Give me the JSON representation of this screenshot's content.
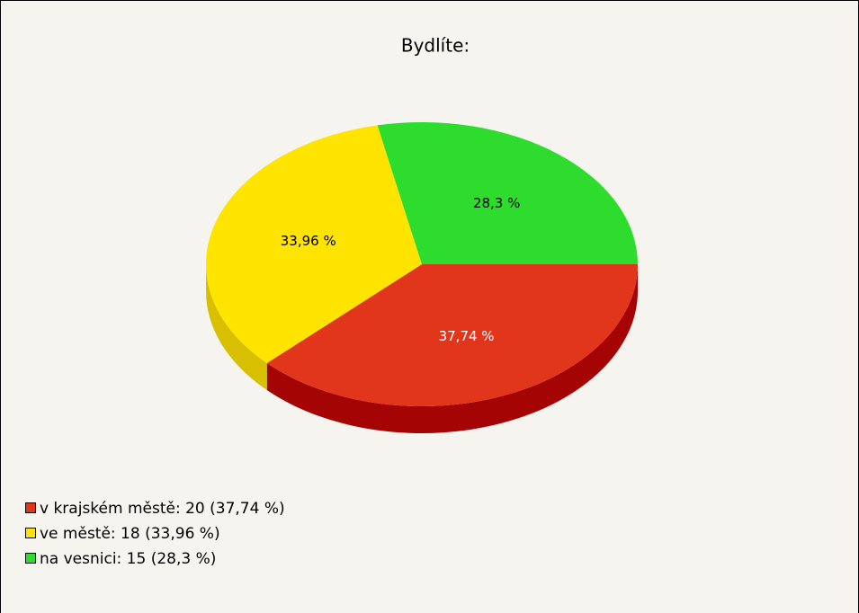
{
  "chart_data": {
    "type": "pie",
    "title": "Bydlíte:",
    "categories": [
      "v krajském městě: 20 (37,74 %)",
      "ve městě: 18 (33,96 %)",
      "na vesnici: 15 (28,3 %)"
    ],
    "values": [
      37.74,
      33.96,
      28.3
    ],
    "value_labels": [
      "37,74 %",
      "33,96 %",
      "28,3 %"
    ],
    "colors": [
      "#e2361c",
      "#ffe400",
      "#2edc2e"
    ],
    "side_colors": [
      "#a40404",
      "#d8c000",
      "#1aa01a"
    ],
    "label_colors": [
      "#ffffff",
      "#000000",
      "#000000"
    ],
    "legend": "bottom-left"
  }
}
